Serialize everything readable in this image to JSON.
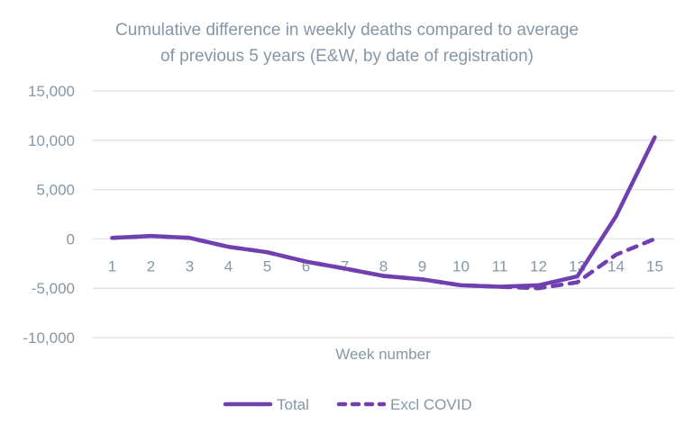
{
  "chart_data": {
    "type": "line",
    "title": [
      "Cumulative difference in weekly deaths compared to average",
      "of previous 5 years (E&W, by date of registration)"
    ],
    "xlabel": "Week number",
    "ylabel": "",
    "x": [
      1,
      2,
      3,
      4,
      5,
      6,
      7,
      8,
      9,
      10,
      11,
      12,
      13,
      14,
      15
    ],
    "x_tick_labels": [
      "1",
      "2",
      "3",
      "4",
      "5",
      "6",
      "7",
      "8",
      "9",
      "10",
      "11",
      "12",
      "13",
      "14",
      "15"
    ],
    "ylim": [
      -10000,
      15000
    ],
    "y_ticks": [
      15000,
      10000,
      5000,
      0,
      -5000,
      -10000
    ],
    "y_tick_labels": [
      "15,000",
      "10,000",
      "5,000",
      "0",
      "-5,000",
      "-10,000"
    ],
    "grid": true,
    "legend_position": "bottom",
    "series": [
      {
        "name": "Total",
        "style": "solid",
        "color": "#7040b0",
        "values": [
          100,
          300,
          100,
          -800,
          -1350,
          -2300,
          -3000,
          -3750,
          -4100,
          -4700,
          -4850,
          -4700,
          -3800,
          2300,
          10300
        ]
      },
      {
        "name": "Excl COVID",
        "style": "dashed",
        "color": "#7040b0",
        "values": [
          100,
          300,
          100,
          -800,
          -1350,
          -2300,
          -3000,
          -3750,
          -4100,
          -4700,
          -4850,
          -5000,
          -4400,
          -1600,
          0
        ]
      }
    ]
  }
}
